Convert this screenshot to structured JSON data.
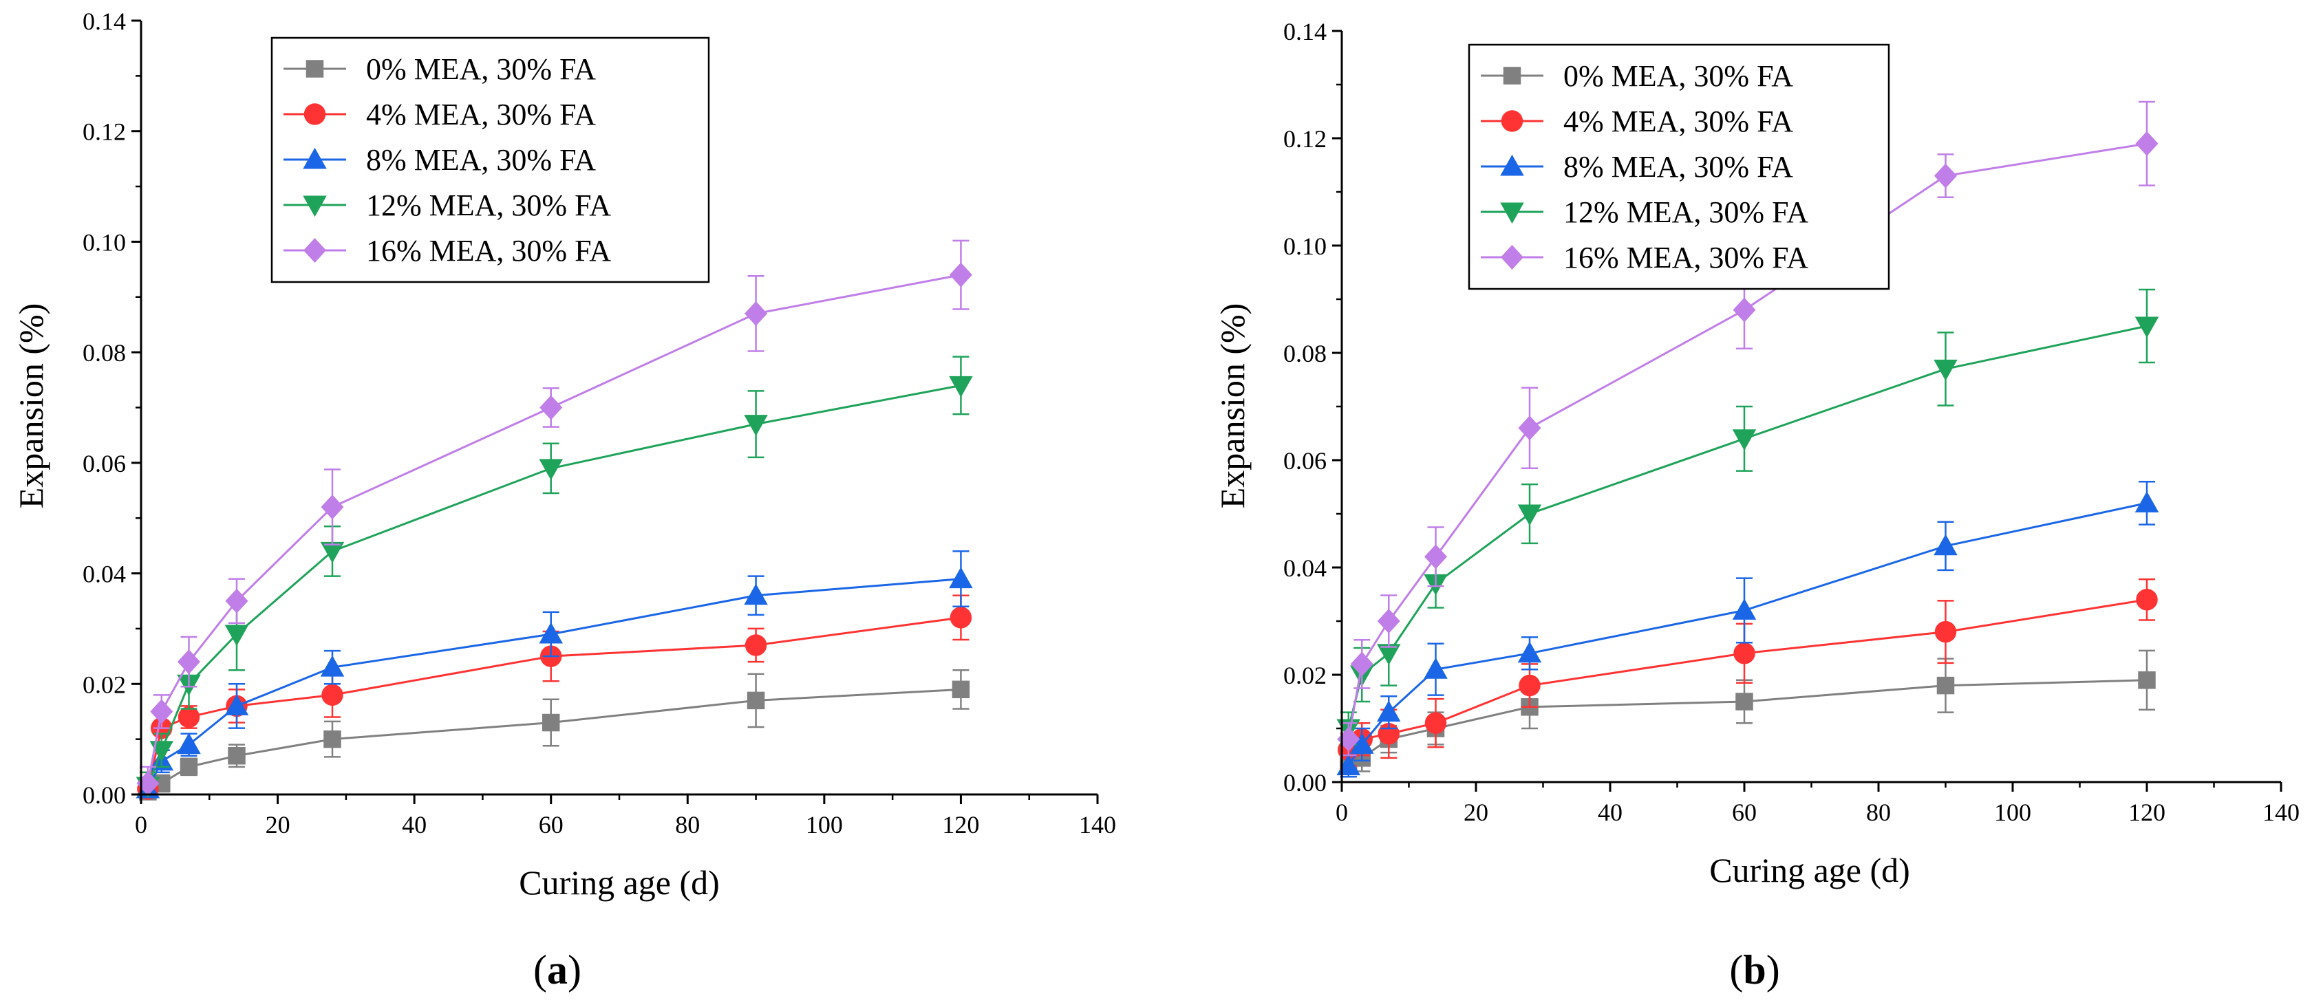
{
  "chart_data": [
    {
      "type": "line",
      "panel_label": "(a)",
      "panel_open": "(",
      "panel_letter": "a",
      "panel_close": ")",
      "xlabel": "Curing age (d)",
      "ylabel": "Expansion (%)",
      "xlim": [
        0,
        140
      ],
      "ylim": [
        0,
        0.14
      ],
      "xticks": [
        "0",
        "20",
        "40",
        "60",
        "80",
        "100",
        "120",
        "140"
      ],
      "yticks": [
        "0.00",
        "0.02",
        "0.04",
        "0.06",
        "0.08",
        "0.10",
        "0.12",
        "0.14"
      ],
      "legend_position": "top-center",
      "series": [
        {
          "name": "0% MEA, 30% FA",
          "color": "#808080",
          "marker": "square",
          "x": [
            1,
            3,
            7,
            14,
            28,
            60,
            90,
            120
          ],
          "y": [
            0.0005,
            0.002,
            0.005,
            0.007,
            0.01,
            0.013,
            0.017,
            0.019
          ],
          "err": [
            0.001,
            0.0015,
            0.0015,
            0.002,
            0.0032,
            0.0042,
            0.0048,
            0.0035
          ]
        },
        {
          "name": "4% MEA, 30% FA",
          "color": "#ff3333",
          "marker": "circle",
          "x": [
            1,
            3,
            7,
            14,
            28,
            60,
            90,
            120
          ],
          "y": [
            0.001,
            0.012,
            0.014,
            0.016,
            0.018,
            0.025,
            0.027,
            0.032
          ],
          "err": [
            0.003,
            0.003,
            0.002,
            0.003,
            0.004,
            0.0045,
            0.003,
            0.004
          ]
        },
        {
          "name": "8% MEA, 30% FA",
          "color": "#1a66e6",
          "marker": "triangle-up",
          "x": [
            1,
            3,
            7,
            14,
            28,
            60,
            90,
            120
          ],
          "y": [
            0.001,
            0.006,
            0.009,
            0.016,
            0.023,
            0.029,
            0.036,
            0.039
          ],
          "err": [
            0.002,
            0.002,
            0.002,
            0.004,
            0.003,
            0.004,
            0.0035,
            0.005
          ]
        },
        {
          "name": "12% MEA, 30% FA",
          "color": "#1fa35a",
          "marker": "triangle-down",
          "x": [
            1,
            3,
            7,
            14,
            28,
            60,
            90,
            120
          ],
          "y": [
            0.0015,
            0.008,
            0.02,
            0.029,
            0.044,
            0.059,
            0.067,
            0.074
          ],
          "err": [
            0.0025,
            0.003,
            0.0045,
            0.0065,
            0.0045,
            0.0045,
            0.006,
            0.0052
          ]
        },
        {
          "name": "16% MEA, 30% FA",
          "color": "#c07ee8",
          "marker": "diamond",
          "x": [
            1,
            3,
            7,
            14,
            28,
            60,
            90,
            120
          ],
          "y": [
            0.002,
            0.015,
            0.024,
            0.035,
            0.052,
            0.07,
            0.087,
            0.094
          ],
          "err": [
            0.003,
            0.003,
            0.0045,
            0.004,
            0.0068,
            0.0035,
            0.0068,
            0.0062
          ]
        }
      ]
    },
    {
      "type": "line",
      "panel_label": "(b)",
      "panel_open": "(",
      "panel_letter": "b",
      "panel_close": ")",
      "xlabel": "Curing age (d)",
      "ylabel": "Expansion (%)",
      "xlim": [
        0,
        140
      ],
      "ylim": [
        0,
        0.14
      ],
      "xticks": [
        "0",
        "20",
        "40",
        "60",
        "80",
        "100",
        "120",
        "140"
      ],
      "yticks": [
        "0.00",
        "0.02",
        "0.04",
        "0.06",
        "0.08",
        "0.10",
        "0.12",
        "0.14"
      ],
      "legend_position": "top-left",
      "series": [
        {
          "name": "0% MEA, 30% FA",
          "color": "#808080",
          "marker": "square",
          "x": [
            1,
            3,
            7,
            14,
            28,
            60,
            90,
            120
          ],
          "y": [
            0.003,
            0.0045,
            0.008,
            0.01,
            0.014,
            0.015,
            0.018,
            0.019
          ],
          "err": [
            0.002,
            0.0025,
            0.0025,
            0.003,
            0.004,
            0.004,
            0.005,
            0.0055
          ]
        },
        {
          "name": "4% MEA, 30% FA",
          "color": "#ff3333",
          "marker": "circle",
          "x": [
            1,
            3,
            7,
            14,
            28,
            60,
            90,
            120
          ],
          "y": [
            0.006,
            0.008,
            0.009,
            0.011,
            0.018,
            0.024,
            0.028,
            0.034
          ],
          "err": [
            0.003,
            0.003,
            0.0045,
            0.0045,
            0.004,
            0.0055,
            0.0058,
            0.0038
          ]
        },
        {
          "name": "8% MEA, 30% FA",
          "color": "#1a66e6",
          "marker": "triangle-up",
          "x": [
            1,
            3,
            7,
            14,
            28,
            60,
            90,
            120
          ],
          "y": [
            0.003,
            0.007,
            0.013,
            0.021,
            0.024,
            0.032,
            0.044,
            0.052
          ],
          "err": [
            0.002,
            0.003,
            0.003,
            0.0048,
            0.003,
            0.006,
            0.0045,
            0.004
          ]
        },
        {
          "name": "12% MEA, 30% FA",
          "color": "#1fa35a",
          "marker": "triangle-down",
          "x": [
            1,
            3,
            7,
            14,
            28,
            60,
            90,
            120
          ],
          "y": [
            0.01,
            0.02,
            0.024,
            0.037,
            0.05,
            0.064,
            0.077,
            0.085
          ],
          "err": [
            0.003,
            0.005,
            0.006,
            0.0045,
            0.0055,
            0.006,
            0.0068,
            0.0068
          ]
        },
        {
          "name": "16% MEA, 30% FA",
          "color": "#c07ee8",
          "marker": "diamond",
          "x": [
            1,
            3,
            7,
            14,
            28,
            60,
            90,
            120
          ],
          "y": [
            0.008,
            0.022,
            0.03,
            0.042,
            0.066,
            0.088,
            0.113,
            0.119
          ],
          "err": [
            0.003,
            0.0045,
            0.0048,
            0.0055,
            0.0075,
            0.0072,
            0.004,
            0.0078
          ]
        }
      ]
    }
  ]
}
